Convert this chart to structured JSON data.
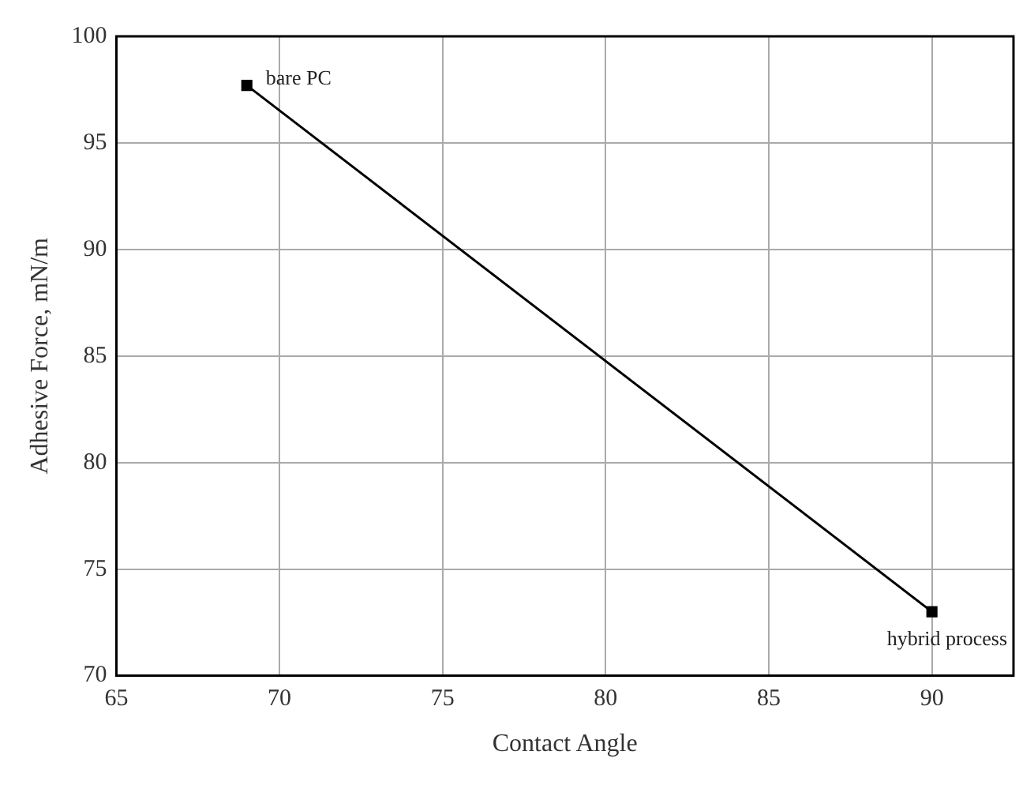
{
  "chart_data": {
    "type": "line",
    "xlabel": "Contact Angle",
    "ylabel": "Adhesive Force, mN/m",
    "x": [
      69,
      90
    ],
    "values": [
      97.7,
      73
    ],
    "color": "#000000",
    "marker": "square",
    "line_style": "solid",
    "xlim": [
      65,
      92.5
    ],
    "xticks": [
      65,
      70,
      75,
      80,
      85,
      90
    ],
    "ylim": [
      70,
      100
    ],
    "yticks": [
      70,
      75,
      80,
      85,
      90,
      95,
      100
    ],
    "grid": true,
    "annotations": [
      {
        "text": "bare PC",
        "x": 69,
        "y": 97.7
      },
      {
        "text": "hybrid process",
        "x": 90,
        "y": 73
      }
    ]
  }
}
